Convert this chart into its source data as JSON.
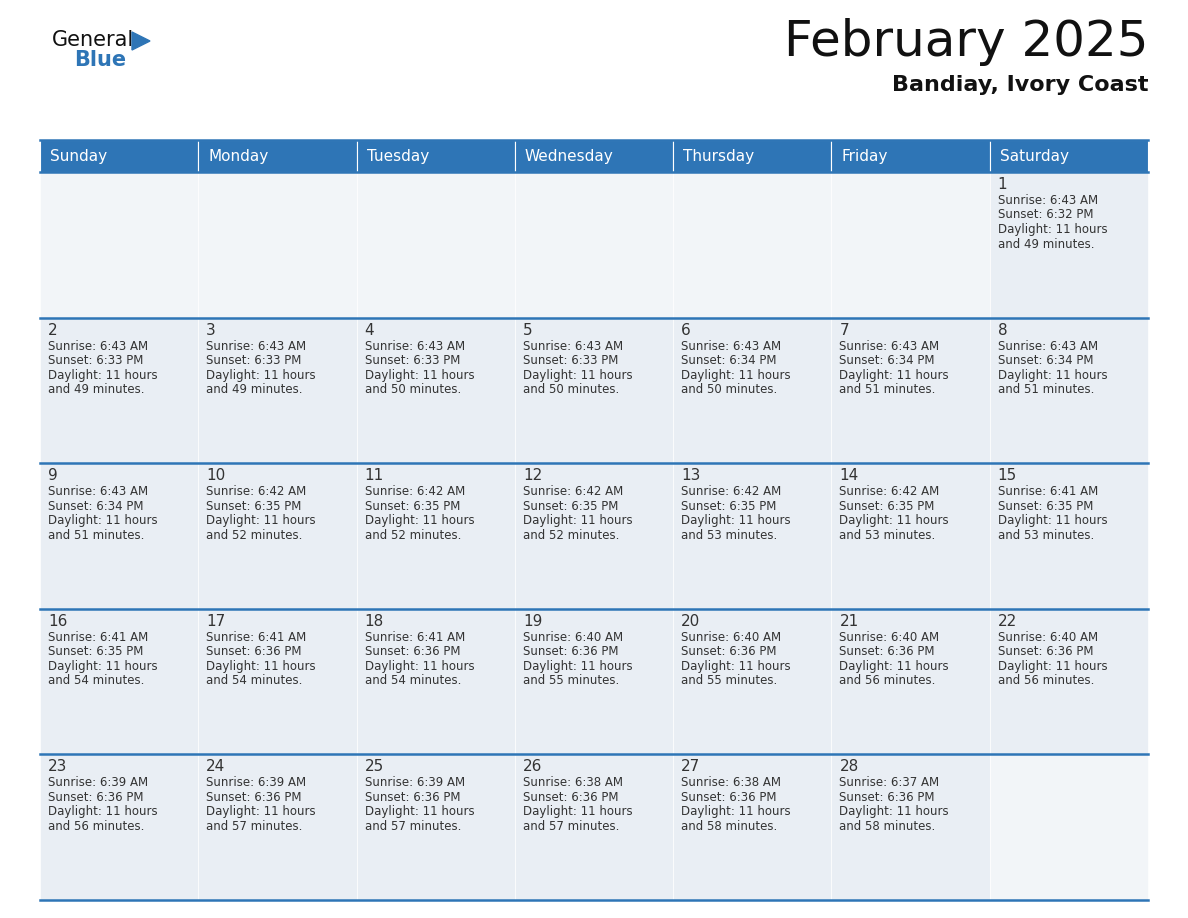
{
  "title": "February 2025",
  "subtitle": "Bandiay, Ivory Coast",
  "header_bg": "#2e75b6",
  "header_text": "#ffffff",
  "cell_bg": "#e9eef4",
  "cell_bg_empty": "#f2f5f8",
  "border_color": "#2e75b6",
  "text_color": "#333333",
  "days_of_week": [
    "Sunday",
    "Monday",
    "Tuesday",
    "Wednesday",
    "Thursday",
    "Friday",
    "Saturday"
  ],
  "calendar_data": [
    [
      null,
      null,
      null,
      null,
      null,
      null,
      {
        "day": 1,
        "sunrise": "6:43 AM",
        "sunset": "6:32 PM",
        "daylight": "11 hours and 49 minutes"
      }
    ],
    [
      {
        "day": 2,
        "sunrise": "6:43 AM",
        "sunset": "6:33 PM",
        "daylight": "11 hours and 49 minutes"
      },
      {
        "day": 3,
        "sunrise": "6:43 AM",
        "sunset": "6:33 PM",
        "daylight": "11 hours and 49 minutes"
      },
      {
        "day": 4,
        "sunrise": "6:43 AM",
        "sunset": "6:33 PM",
        "daylight": "11 hours and 50 minutes"
      },
      {
        "day": 5,
        "sunrise": "6:43 AM",
        "sunset": "6:33 PM",
        "daylight": "11 hours and 50 minutes"
      },
      {
        "day": 6,
        "sunrise": "6:43 AM",
        "sunset": "6:34 PM",
        "daylight": "11 hours and 50 minutes"
      },
      {
        "day": 7,
        "sunrise": "6:43 AM",
        "sunset": "6:34 PM",
        "daylight": "11 hours and 51 minutes"
      },
      {
        "day": 8,
        "sunrise": "6:43 AM",
        "sunset": "6:34 PM",
        "daylight": "11 hours and 51 minutes"
      }
    ],
    [
      {
        "day": 9,
        "sunrise": "6:43 AM",
        "sunset": "6:34 PM",
        "daylight": "11 hours and 51 minutes"
      },
      {
        "day": 10,
        "sunrise": "6:42 AM",
        "sunset": "6:35 PM",
        "daylight": "11 hours and 52 minutes"
      },
      {
        "day": 11,
        "sunrise": "6:42 AM",
        "sunset": "6:35 PM",
        "daylight": "11 hours and 52 minutes"
      },
      {
        "day": 12,
        "sunrise": "6:42 AM",
        "sunset": "6:35 PM",
        "daylight": "11 hours and 52 minutes"
      },
      {
        "day": 13,
        "sunrise": "6:42 AM",
        "sunset": "6:35 PM",
        "daylight": "11 hours and 53 minutes"
      },
      {
        "day": 14,
        "sunrise": "6:42 AM",
        "sunset": "6:35 PM",
        "daylight": "11 hours and 53 minutes"
      },
      {
        "day": 15,
        "sunrise": "6:41 AM",
        "sunset": "6:35 PM",
        "daylight": "11 hours and 53 minutes"
      }
    ],
    [
      {
        "day": 16,
        "sunrise": "6:41 AM",
        "sunset": "6:35 PM",
        "daylight": "11 hours and 54 minutes"
      },
      {
        "day": 17,
        "sunrise": "6:41 AM",
        "sunset": "6:36 PM",
        "daylight": "11 hours and 54 minutes"
      },
      {
        "day": 18,
        "sunrise": "6:41 AM",
        "sunset": "6:36 PM",
        "daylight": "11 hours and 54 minutes"
      },
      {
        "day": 19,
        "sunrise": "6:40 AM",
        "sunset": "6:36 PM",
        "daylight": "11 hours and 55 minutes"
      },
      {
        "day": 20,
        "sunrise": "6:40 AM",
        "sunset": "6:36 PM",
        "daylight": "11 hours and 55 minutes"
      },
      {
        "day": 21,
        "sunrise": "6:40 AM",
        "sunset": "6:36 PM",
        "daylight": "11 hours and 56 minutes"
      },
      {
        "day": 22,
        "sunrise": "6:40 AM",
        "sunset": "6:36 PM",
        "daylight": "11 hours and 56 minutes"
      }
    ],
    [
      {
        "day": 23,
        "sunrise": "6:39 AM",
        "sunset": "6:36 PM",
        "daylight": "11 hours and 56 minutes"
      },
      {
        "day": 24,
        "sunrise": "6:39 AM",
        "sunset": "6:36 PM",
        "daylight": "11 hours and 57 minutes"
      },
      {
        "day": 25,
        "sunrise": "6:39 AM",
        "sunset": "6:36 PM",
        "daylight": "11 hours and 57 minutes"
      },
      {
        "day": 26,
        "sunrise": "6:38 AM",
        "sunset": "6:36 PM",
        "daylight": "11 hours and 57 minutes"
      },
      {
        "day": 27,
        "sunrise": "6:38 AM",
        "sunset": "6:36 PM",
        "daylight": "11 hours and 58 minutes"
      },
      {
        "day": 28,
        "sunrise": "6:37 AM",
        "sunset": "6:36 PM",
        "daylight": "11 hours and 58 minutes"
      },
      null
    ]
  ],
  "logo_text_general": "General",
  "logo_text_blue": "Blue",
  "logo_triangle_color": "#2e75b6",
  "title_fontsize": 36,
  "subtitle_fontsize": 16,
  "dow_fontsize": 11,
  "day_num_fontsize": 11,
  "cell_text_fontsize": 8.5
}
